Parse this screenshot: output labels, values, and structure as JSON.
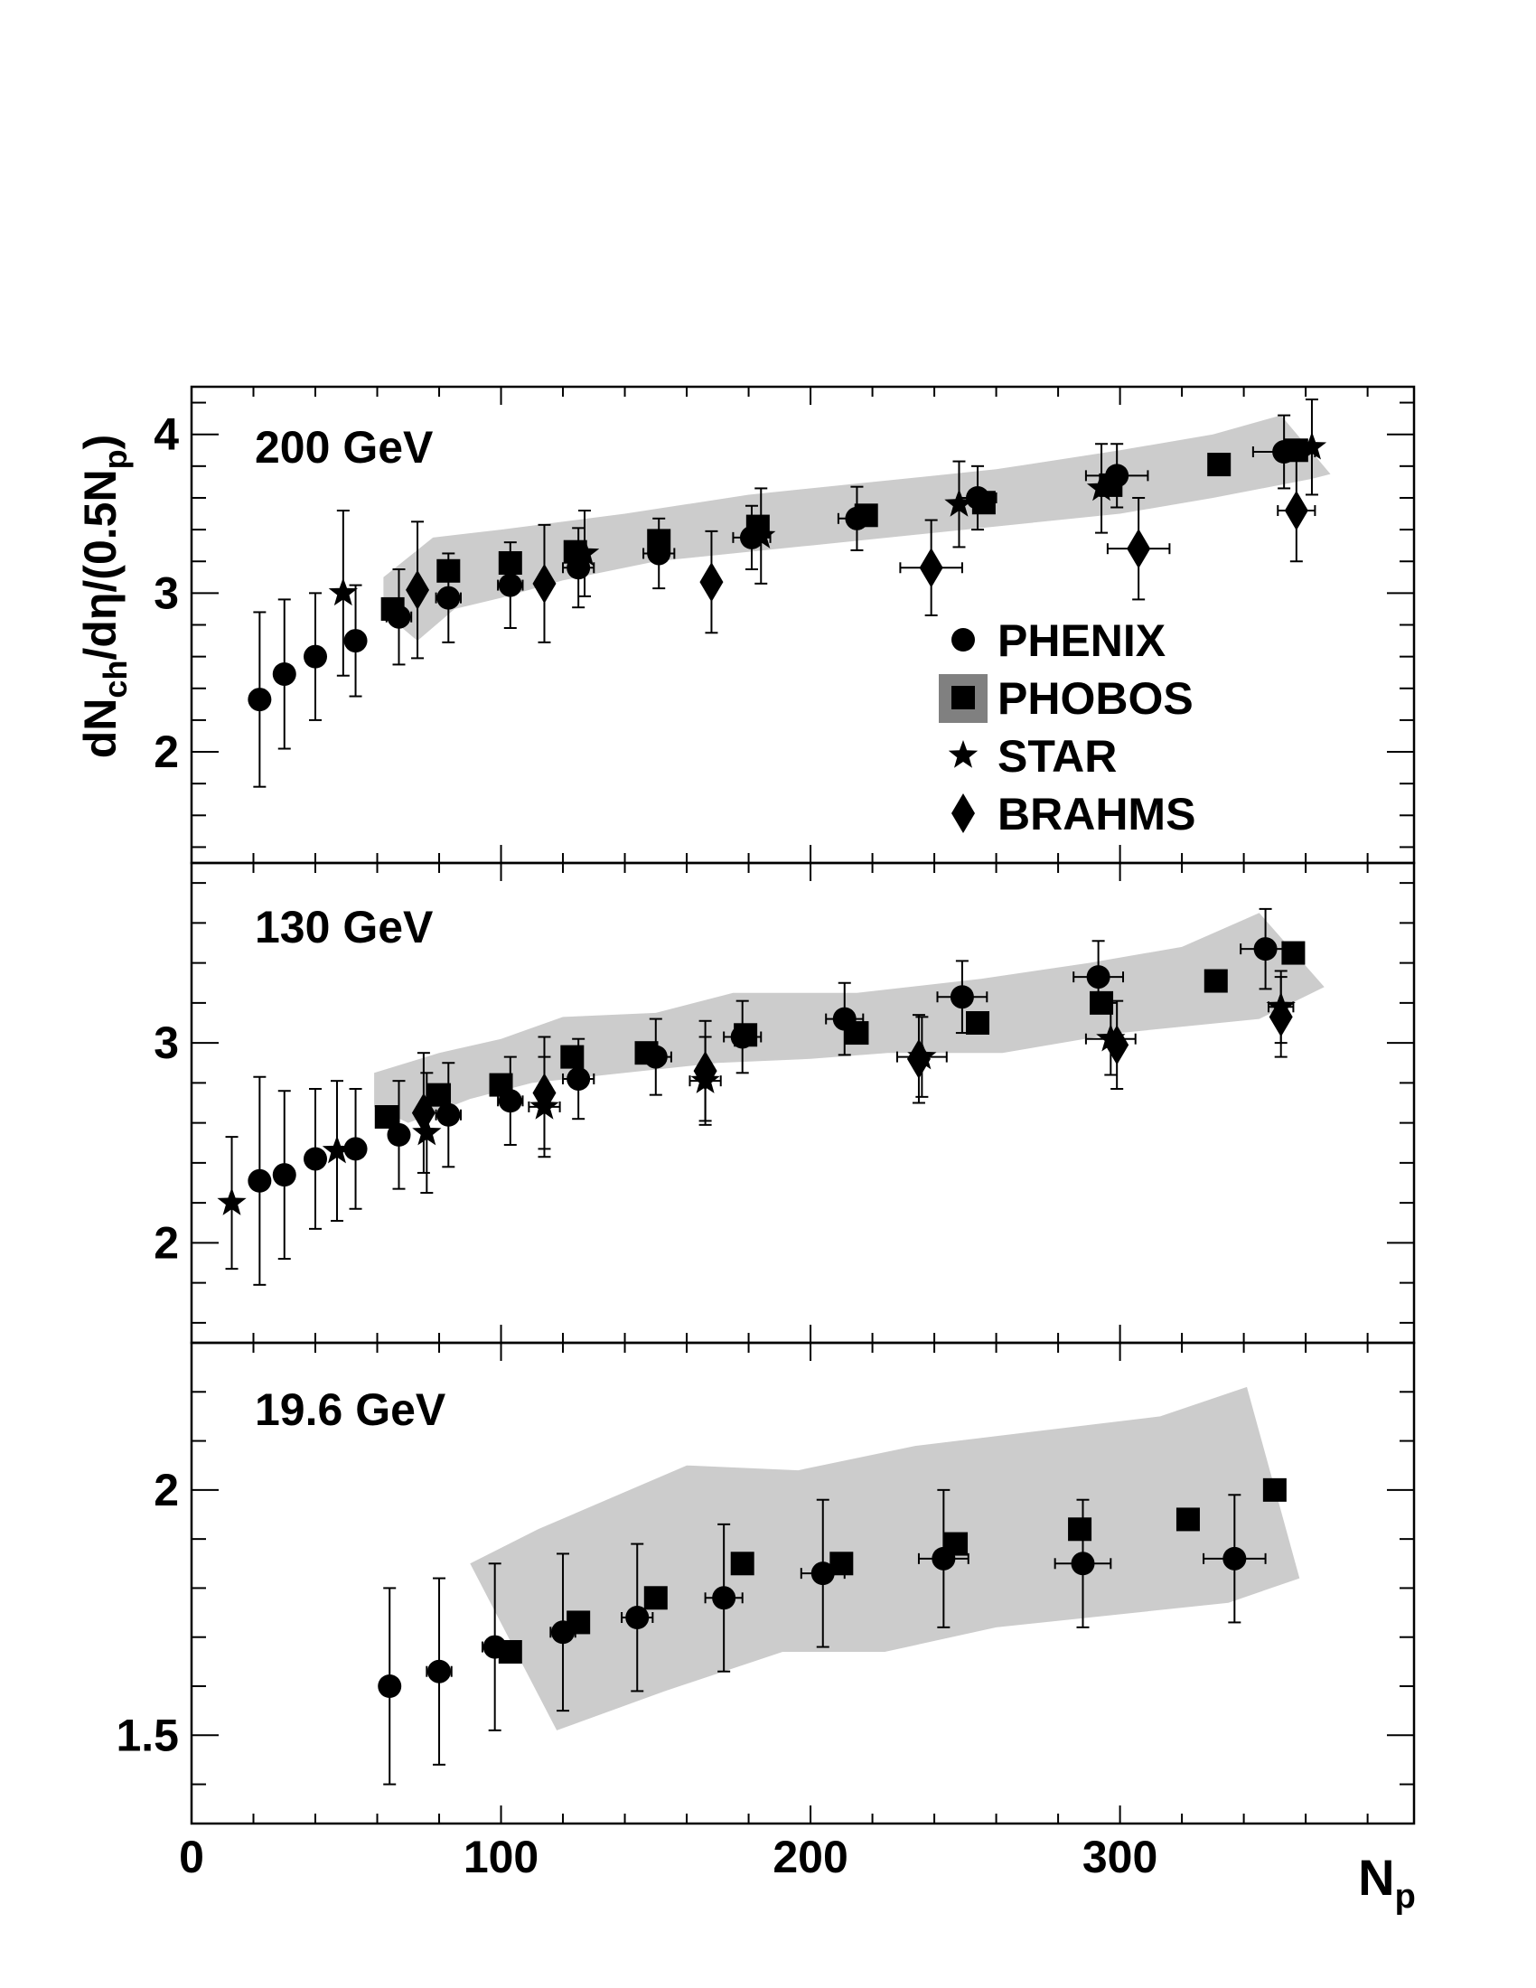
{
  "figure": {
    "y_axis_label": "dN_ch/dη/(0.5N_p)",
    "x_axis_label": "N_p",
    "x_ticks": [
      "0",
      "100",
      "200",
      "300"
    ],
    "legend": [
      {
        "label": "PHENIX",
        "marker": "circle"
      },
      {
        "label": "PHOBOS",
        "marker": "square",
        "band": true
      },
      {
        "label": "STAR",
        "marker": "star"
      },
      {
        "label": "BRAHMS",
        "marker": "diamond"
      }
    ],
    "colors": {
      "marker": "#000000",
      "band": "#cccccc",
      "legend_band": "#808080"
    }
  },
  "chart_data": [
    {
      "type": "scatter",
      "title": "200 GeV",
      "xlim": [
        0,
        395
      ],
      "ylim": [
        1.3,
        4.3
      ],
      "y_ticks": [
        "2",
        "3",
        "4"
      ],
      "xlabel": "N_p",
      "ylabel": "dN_ch/dη/(0.5N_p)",
      "phobos_band": {
        "upper": [
          [
            62,
            3.1
          ],
          [
            78,
            3.35
          ],
          [
            100,
            3.4
          ],
          [
            140,
            3.5
          ],
          [
            180,
            3.62
          ],
          [
            220,
            3.7
          ],
          [
            260,
            3.78
          ],
          [
            300,
            3.9
          ],
          [
            330,
            4.0
          ],
          [
            352,
            4.12
          ],
          [
            368,
            3.75
          ]
        ],
        "lower": [
          [
            362,
            3.72
          ],
          [
            330,
            3.6
          ],
          [
            300,
            3.5
          ],
          [
            250,
            3.4
          ],
          [
            200,
            3.3
          ],
          [
            150,
            3.2
          ],
          [
            120,
            3.08
          ],
          [
            100,
            2.97
          ],
          [
            85,
            2.9
          ],
          [
            73,
            2.7
          ],
          [
            62,
            2.88
          ]
        ]
      },
      "series": [
        {
          "name": "PHENIX",
          "marker": "circle",
          "points": [
            {
              "x": 22,
              "y": 2.33,
              "yerr": 0.55,
              "xerr": 0
            },
            {
              "x": 30,
              "y": 2.49,
              "yerr": 0.47,
              "xerr": 0
            },
            {
              "x": 40,
              "y": 2.6,
              "yerr": 0.4,
              "xerr": 0
            },
            {
              "x": 53,
              "y": 2.7,
              "yerr": 0.35,
              "xerr": 3
            },
            {
              "x": 67,
              "y": 2.85,
              "yerr": 0.3,
              "xerr": 4
            },
            {
              "x": 83,
              "y": 2.97,
              "yerr": 0.28,
              "xerr": 4
            },
            {
              "x": 103,
              "y": 3.05,
              "yerr": 0.27,
              "xerr": 4
            },
            {
              "x": 125,
              "y": 3.16,
              "yerr": 0.25,
              "xerr": 5
            },
            {
              "x": 151,
              "y": 3.25,
              "yerr": 0.22,
              "xerr": 5
            },
            {
              "x": 181,
              "y": 3.35,
              "yerr": 0.2,
              "xerr": 6
            },
            {
              "x": 215,
              "y": 3.47,
              "yerr": 0.2,
              "xerr": 6
            },
            {
              "x": 254,
              "y": 3.6,
              "yerr": 0.2,
              "xerr": 6
            },
            {
              "x": 299,
              "y": 3.74,
              "yerr": 0.2,
              "xerr": 10
            },
            {
              "x": 353,
              "y": 3.89,
              "yerr": 0.23,
              "xerr": 10
            }
          ]
        },
        {
          "name": "PHOBOS",
          "marker": "square",
          "points": [
            {
              "x": 65,
              "y": 2.9
            },
            {
              "x": 83,
              "y": 3.14
            },
            {
              "x": 103,
              "y": 3.19
            },
            {
              "x": 124,
              "y": 3.26
            },
            {
              "x": 151,
              "y": 3.33
            },
            {
              "x": 183,
              "y": 3.42
            },
            {
              "x": 218,
              "y": 3.49
            },
            {
              "x": 256,
              "y": 3.57
            },
            {
              "x": 297,
              "y": 3.68
            },
            {
              "x": 332,
              "y": 3.81
            },
            {
              "x": 357,
              "y": 3.9
            }
          ]
        },
        {
          "name": "STAR",
          "marker": "star",
          "points": [
            {
              "x": 49,
              "y": 3.0,
              "yerr": 0.52,
              "xerr": 0
            },
            {
              "x": 127,
              "y": 3.25,
              "yerr": 0.27,
              "xerr": 0
            },
            {
              "x": 184,
              "y": 3.36,
              "yerr": 0.3,
              "xerr": 0
            },
            {
              "x": 248,
              "y": 3.56,
              "yerr": 0.27,
              "xerr": 0
            },
            {
              "x": 294,
              "y": 3.66,
              "yerr": 0.28,
              "xerr": 0
            },
            {
              "x": 362,
              "y": 3.92,
              "yerr": 0.3,
              "xerr": 0
            }
          ]
        },
        {
          "name": "BRAHMS",
          "marker": "diamond",
          "points": [
            {
              "x": 73,
              "y": 3.02,
              "yerr": 0.43,
              "xerr": 0
            },
            {
              "x": 114,
              "y": 3.06,
              "yerr": 0.37,
              "xerr": 0
            },
            {
              "x": 168,
              "y": 3.07,
              "yerr": 0.32,
              "xerr": 0
            },
            {
              "x": 239,
              "y": 3.16,
              "yerr": 0.3,
              "xerr": 10
            },
            {
              "x": 306,
              "y": 3.28,
              "yerr": 0.32,
              "xerr": 10
            },
            {
              "x": 357,
              "y": 3.52,
              "yerr": 0.32,
              "xerr": 6
            }
          ]
        }
      ]
    },
    {
      "type": "scatter",
      "title": "130 GeV",
      "xlim": [
        0,
        395
      ],
      "ylim": [
        1.5,
        3.9
      ],
      "y_ticks": [
        "2",
        "3"
      ],
      "xlabel": "N_p",
      "ylabel": "dN_ch/dη/(0.5N_p)",
      "phobos_band": {
        "upper": [
          [
            59,
            2.85
          ],
          [
            80,
            2.95
          ],
          [
            100,
            3.02
          ],
          [
            120,
            3.13
          ],
          [
            150,
            3.15
          ],
          [
            175,
            3.25
          ],
          [
            215,
            3.25
          ],
          [
            255,
            3.32
          ],
          [
            290,
            3.4
          ],
          [
            320,
            3.48
          ],
          [
            345,
            3.65
          ],
          [
            366,
            3.28
          ]
        ],
        "lower": [
          [
            345,
            3.12
          ],
          [
            300,
            3.05
          ],
          [
            262,
            2.95
          ],
          [
            225,
            2.95
          ],
          [
            200,
            2.92
          ],
          [
            170,
            2.9
          ],
          [
            140,
            2.85
          ],
          [
            110,
            2.8
          ],
          [
            90,
            2.72
          ],
          [
            70,
            2.6
          ],
          [
            59,
            2.68
          ]
        ]
      },
      "series": [
        {
          "name": "PHENIX",
          "marker": "circle",
          "points": [
            {
              "x": 22,
              "y": 2.31,
              "yerr": 0.52,
              "xerr": 0
            },
            {
              "x": 30,
              "y": 2.34,
              "yerr": 0.42,
              "xerr": 0
            },
            {
              "x": 40,
              "y": 2.42,
              "yerr": 0.35,
              "xerr": 3
            },
            {
              "x": 53,
              "y": 2.47,
              "yerr": 0.3,
              "xerr": 3
            },
            {
              "x": 67,
              "y": 2.54,
              "yerr": 0.27,
              "xerr": 3
            },
            {
              "x": 83,
              "y": 2.64,
              "yerr": 0.26,
              "xerr": 4
            },
            {
              "x": 103,
              "y": 2.71,
              "yerr": 0.22,
              "xerr": 4
            },
            {
              "x": 125,
              "y": 2.82,
              "yerr": 0.2,
              "xerr": 5
            },
            {
              "x": 150,
              "y": 2.93,
              "yerr": 0.19,
              "xerr": 5
            },
            {
              "x": 178,
              "y": 3.03,
              "yerr": 0.18,
              "xerr": 6
            },
            {
              "x": 211,
              "y": 3.12,
              "yerr": 0.18,
              "xerr": 6
            },
            {
              "x": 249,
              "y": 3.23,
              "yerr": 0.18,
              "xerr": 8
            },
            {
              "x": 293,
              "y": 3.33,
              "yerr": 0.18,
              "xerr": 8
            },
            {
              "x": 347,
              "y": 3.47,
              "yerr": 0.2,
              "xerr": 8
            }
          ]
        },
        {
          "name": "PHOBOS",
          "marker": "square",
          "points": [
            {
              "x": 63,
              "y": 2.63
            },
            {
              "x": 80,
              "y": 2.74
            },
            {
              "x": 100,
              "y": 2.79
            },
            {
              "x": 123,
              "y": 2.93
            },
            {
              "x": 147,
              "y": 2.95
            },
            {
              "x": 179,
              "y": 3.04
            },
            {
              "x": 215,
              "y": 3.05
            },
            {
              "x": 254,
              "y": 3.1
            },
            {
              "x": 294,
              "y": 3.2
            },
            {
              "x": 331,
              "y": 3.31
            },
            {
              "x": 356,
              "y": 3.45
            }
          ]
        },
        {
          "name": "STAR",
          "marker": "star",
          "points": [
            {
              "x": 13,
              "y": 2.2,
              "yerr": 0.33,
              "xerr": 0
            },
            {
              "x": 47,
              "y": 2.46,
              "yerr": 0.35,
              "xerr": 0
            },
            {
              "x": 76,
              "y": 2.55,
              "yerr": 0.3,
              "xerr": 0
            },
            {
              "x": 114,
              "y": 2.68,
              "yerr": 0.25,
              "xerr": 5
            },
            {
              "x": 166,
              "y": 2.81,
              "yerr": 0.22,
              "xerr": 5
            },
            {
              "x": 236,
              "y": 2.93,
              "yerr": 0.2,
              "xerr": 8
            },
            {
              "x": 297,
              "y": 3.02,
              "yerr": 0.18,
              "xerr": 8
            },
            {
              "x": 352,
              "y": 3.18,
              "yerr": 0.18,
              "xerr": 4
            }
          ]
        },
        {
          "name": "BRAHMS",
          "marker": "diamond",
          "points": [
            {
              "x": 75,
              "y": 2.65,
              "yerr": 0.3,
              "xerr": 0
            },
            {
              "x": 114,
              "y": 2.75,
              "yerr": 0.28,
              "xerr": 0
            },
            {
              "x": 166,
              "y": 2.86,
              "yerr": 0.25,
              "xerr": 0
            },
            {
              "x": 235,
              "y": 2.92,
              "yerr": 0.22,
              "xerr": 0
            },
            {
              "x": 299,
              "y": 2.99,
              "yerr": 0.22,
              "xerr": 0
            },
            {
              "x": 352,
              "y": 3.13,
              "yerr": 0.2,
              "xerr": 0
            }
          ]
        }
      ]
    },
    {
      "type": "scatter",
      "title": "19.6 GeV",
      "xlim": [
        0,
        395
      ],
      "ylim": [
        1.32,
        2.3
      ],
      "y_ticks": [
        "1.5",
        "2"
      ],
      "xlabel": "N_p",
      "ylabel": "dN_ch/dη/(0.5N_p)",
      "phobos_band": {
        "upper": [
          [
            90,
            1.85
          ],
          [
            112,
            1.92
          ],
          [
            160,
            2.05
          ],
          [
            196,
            2.04
          ],
          [
            234,
            2.09
          ],
          [
            313,
            2.15
          ],
          [
            341,
            2.21
          ],
          [
            358,
            1.82
          ]
        ],
        "lower": [
          [
            335,
            1.77
          ],
          [
            260,
            1.72
          ],
          [
            224,
            1.67
          ],
          [
            191,
            1.67
          ],
          [
            153,
            1.59
          ],
          [
            118,
            1.51
          ],
          [
            90,
            1.85
          ]
        ]
      },
      "series": [
        {
          "name": "PHENIX",
          "marker": "circle",
          "points": [
            {
              "x": 64,
              "y": 1.6,
              "yerr": 0.2,
              "xerr": 3
            },
            {
              "x": 80,
              "y": 1.63,
              "yerr": 0.19,
              "xerr": 4
            },
            {
              "x": 98,
              "y": 1.68,
              "yerr": 0.17,
              "xerr": 4
            },
            {
              "x": 120,
              "y": 1.71,
              "yerr": 0.16,
              "xerr": 4
            },
            {
              "x": 144,
              "y": 1.74,
              "yerr": 0.15,
              "xerr": 5
            },
            {
              "x": 172,
              "y": 1.78,
              "yerr": 0.15,
              "xerr": 6
            },
            {
              "x": 204,
              "y": 1.83,
              "yerr": 0.15,
              "xerr": 7
            },
            {
              "x": 243,
              "y": 1.86,
              "yerr": 0.14,
              "xerr": 8
            },
            {
              "x": 288,
              "y": 1.85,
              "yerr": 0.13,
              "xerr": 9
            },
            {
              "x": 337,
              "y": 1.86,
              "yerr": 0.13,
              "xerr": 10
            }
          ]
        },
        {
          "name": "PHOBOS",
          "marker": "square",
          "points": [
            {
              "x": 103,
              "y": 1.67
            },
            {
              "x": 125,
              "y": 1.73
            },
            {
              "x": 150,
              "y": 1.78
            },
            {
              "x": 178,
              "y": 1.85
            },
            {
              "x": 210,
              "y": 1.85
            },
            {
              "x": 247,
              "y": 1.89
            },
            {
              "x": 287,
              "y": 1.92
            },
            {
              "x": 322,
              "y": 1.94
            },
            {
              "x": 350,
              "y": 2.0
            }
          ]
        }
      ]
    }
  ]
}
